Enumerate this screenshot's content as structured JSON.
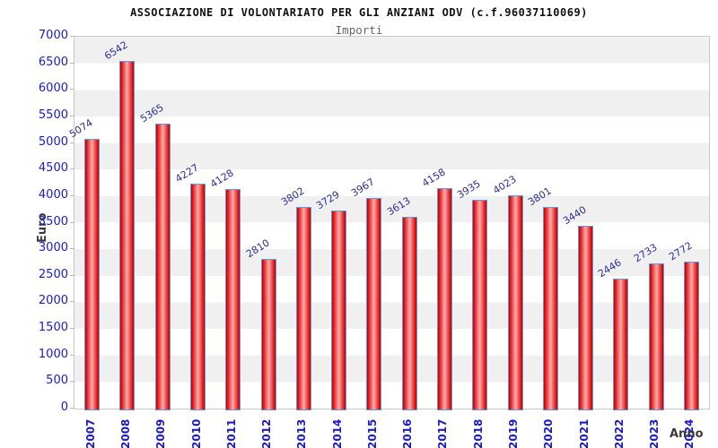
{
  "header": {
    "title": "ASSOCIAZIONE DI VOLONTARIATO PER GLI ANZIANI ODV (c.f.96037110069)",
    "subtitle": "Importi"
  },
  "axes": {
    "y_label": "Euro",
    "x_label": "Anno"
  },
  "colors": {
    "bar_edge_blue": "#5e9ae0",
    "bar_red_dark": "#bf0000",
    "bar_red_light": "#f8aeae",
    "tick_label_blue": "#1a1acc",
    "value_label_navy": "#2d2d99",
    "band_gray": "#f0f0f0",
    "band_white": "#ffffff",
    "axis_title_gray": "#3a3a3a"
  },
  "chart_data": {
    "type": "bar",
    "title": "ASSOCIAZIONE DI VOLONTARIATO PER GLI ANZIANI ODV (c.f.96037110069)",
    "subtitle": "Importi",
    "xlabel": "Anno",
    "ylabel": "Euro",
    "categories": [
      "2007",
      "2008",
      "2009",
      "2010",
      "2011",
      "2012",
      "2013",
      "2014",
      "2015",
      "2016",
      "2017",
      "2018",
      "2019",
      "2020",
      "2021",
      "2022",
      "2023",
      "2024"
    ],
    "values": [
      5074,
      6542,
      5365,
      4227,
      4128,
      2810,
      3802,
      3729,
      3967,
      3613,
      4158,
      3935,
      4023,
      3801,
      3440,
      2446,
      2733,
      2772
    ],
    "ylim": [
      0,
      7000
    ],
    "ytick_step": 500,
    "grid": "horizontal-bands-alternating",
    "legend": "none",
    "bar_value_labels": "above-bars-rotated",
    "x_tick_rotation": "vertical"
  }
}
